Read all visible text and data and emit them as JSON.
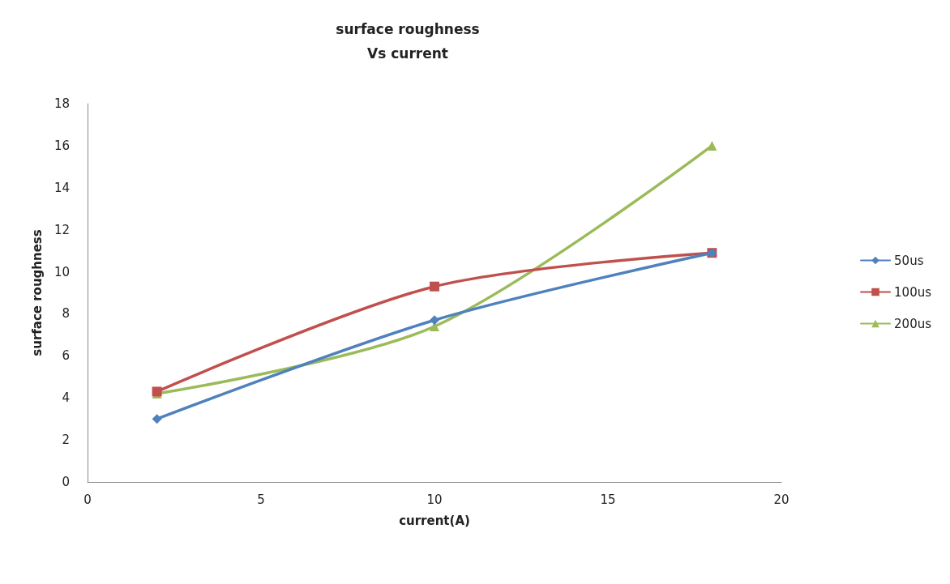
{
  "chart_data": {
    "type": "line",
    "title": "surface roughness\nVs current",
    "xlabel": "current(A)",
    "ylabel": "surface roughness",
    "x": [
      2,
      10,
      18
    ],
    "xlim": [
      0,
      20
    ],
    "xticks": [
      0,
      5,
      10,
      15,
      20
    ],
    "ylim": [
      0,
      18
    ],
    "yticks": [
      0,
      2,
      4,
      6,
      8,
      10,
      12,
      14,
      16,
      18
    ],
    "grid": false,
    "legend": "right",
    "line_style": "solid",
    "series": [
      {
        "name": "50us",
        "color": "#4f81bd",
        "marker": "diamond",
        "values": [
          3.0,
          7.7,
          10.9
        ]
      },
      {
        "name": "100us",
        "color": "#c0504d",
        "marker": "square",
        "values": [
          4.3,
          9.3,
          10.9
        ]
      },
      {
        "name": "200us",
        "color": "#9bbb59",
        "marker": "triangle",
        "values": [
          4.2,
          7.4,
          16.0
        ]
      }
    ]
  }
}
